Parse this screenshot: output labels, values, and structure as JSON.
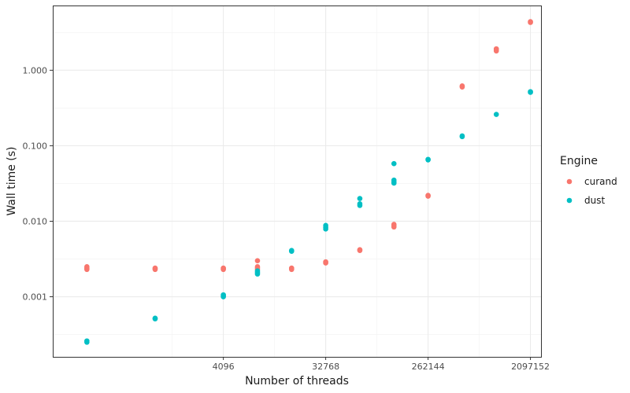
{
  "chart_data": {
    "type": "scatter",
    "title": "",
    "xlabel": "Number of threads",
    "ylabel": "Wall time (s)",
    "x_scale": "log2",
    "y_scale": "log10",
    "xlim": [
      128,
      2600000
    ],
    "ylim": [
      0.00016,
      7.2
    ],
    "x_ticks": [
      4096,
      32768,
      262144,
      2097152
    ],
    "x_tick_labels": [
      "4096",
      "32768",
      "262144",
      "2097152"
    ],
    "y_ticks": [
      0.001,
      0.01,
      0.1,
      1.0
    ],
    "y_tick_labels": [
      "0.001",
      "0.010",
      "0.100",
      "1.000"
    ],
    "grid": true,
    "legend": {
      "title": "Engine",
      "position": "right"
    },
    "series": [
      {
        "name": "curand",
        "color": "#F8766D",
        "points": [
          [
            256,
            0.0025
          ],
          [
            256,
            0.0024
          ],
          [
            256,
            0.00235
          ],
          [
            256,
            0.0023
          ],
          [
            1024,
            0.0024
          ],
          [
            1024,
            0.00235
          ],
          [
            1024,
            0.0023
          ],
          [
            4096,
            0.0024
          ],
          [
            4096,
            0.00235
          ],
          [
            4096,
            0.0023
          ],
          [
            8192,
            0.003
          ],
          [
            8192,
            0.0025
          ],
          [
            8192,
            0.0024
          ],
          [
            8192,
            0.0023
          ],
          [
            16384,
            0.0024
          ],
          [
            16384,
            0.00235
          ],
          [
            16384,
            0.0023
          ],
          [
            32768,
            0.0029
          ],
          [
            32768,
            0.0028
          ],
          [
            65536,
            0.0042
          ],
          [
            65536,
            0.0041
          ],
          [
            131072,
            0.0091
          ],
          [
            131072,
            0.0088
          ],
          [
            131072,
            0.0084
          ],
          [
            262144,
            0.022
          ],
          [
            262144,
            0.0215
          ],
          [
            524288,
            0.62
          ],
          [
            524288,
            0.6
          ],
          [
            1048576,
            1.92
          ],
          [
            1048576,
            1.85
          ],
          [
            1048576,
            1.8
          ],
          [
            2097152,
            4.4
          ],
          [
            2097152,
            4.3
          ]
        ]
      },
      {
        "name": "dust",
        "color": "#00BFC4",
        "points": [
          [
            256,
            0.00026
          ],
          [
            256,
            0.00025
          ],
          [
            1024,
            0.00052
          ],
          [
            1024,
            0.00051
          ],
          [
            4096,
            0.00106
          ],
          [
            4096,
            0.00103
          ],
          [
            4096,
            0.001
          ],
          [
            8192,
            0.0022
          ],
          [
            8192,
            0.0021
          ],
          [
            8192,
            0.002
          ],
          [
            16384,
            0.0041
          ],
          [
            16384,
            0.004
          ],
          [
            32768,
            0.0088
          ],
          [
            32768,
            0.0083
          ],
          [
            32768,
            0.0079
          ],
          [
            65536,
            0.02
          ],
          [
            65536,
            0.017
          ],
          [
            65536,
            0.0162
          ],
          [
            131072,
            0.058
          ],
          [
            131072,
            0.035
          ],
          [
            131072,
            0.033
          ],
          [
            131072,
            0.032
          ],
          [
            262144,
            0.066
          ],
          [
            262144,
            0.065
          ],
          [
            524288,
            0.135
          ],
          [
            524288,
            0.132
          ],
          [
            1048576,
            0.26
          ],
          [
            2097152,
            0.52
          ],
          [
            2097152,
            0.51
          ]
        ]
      }
    ]
  }
}
